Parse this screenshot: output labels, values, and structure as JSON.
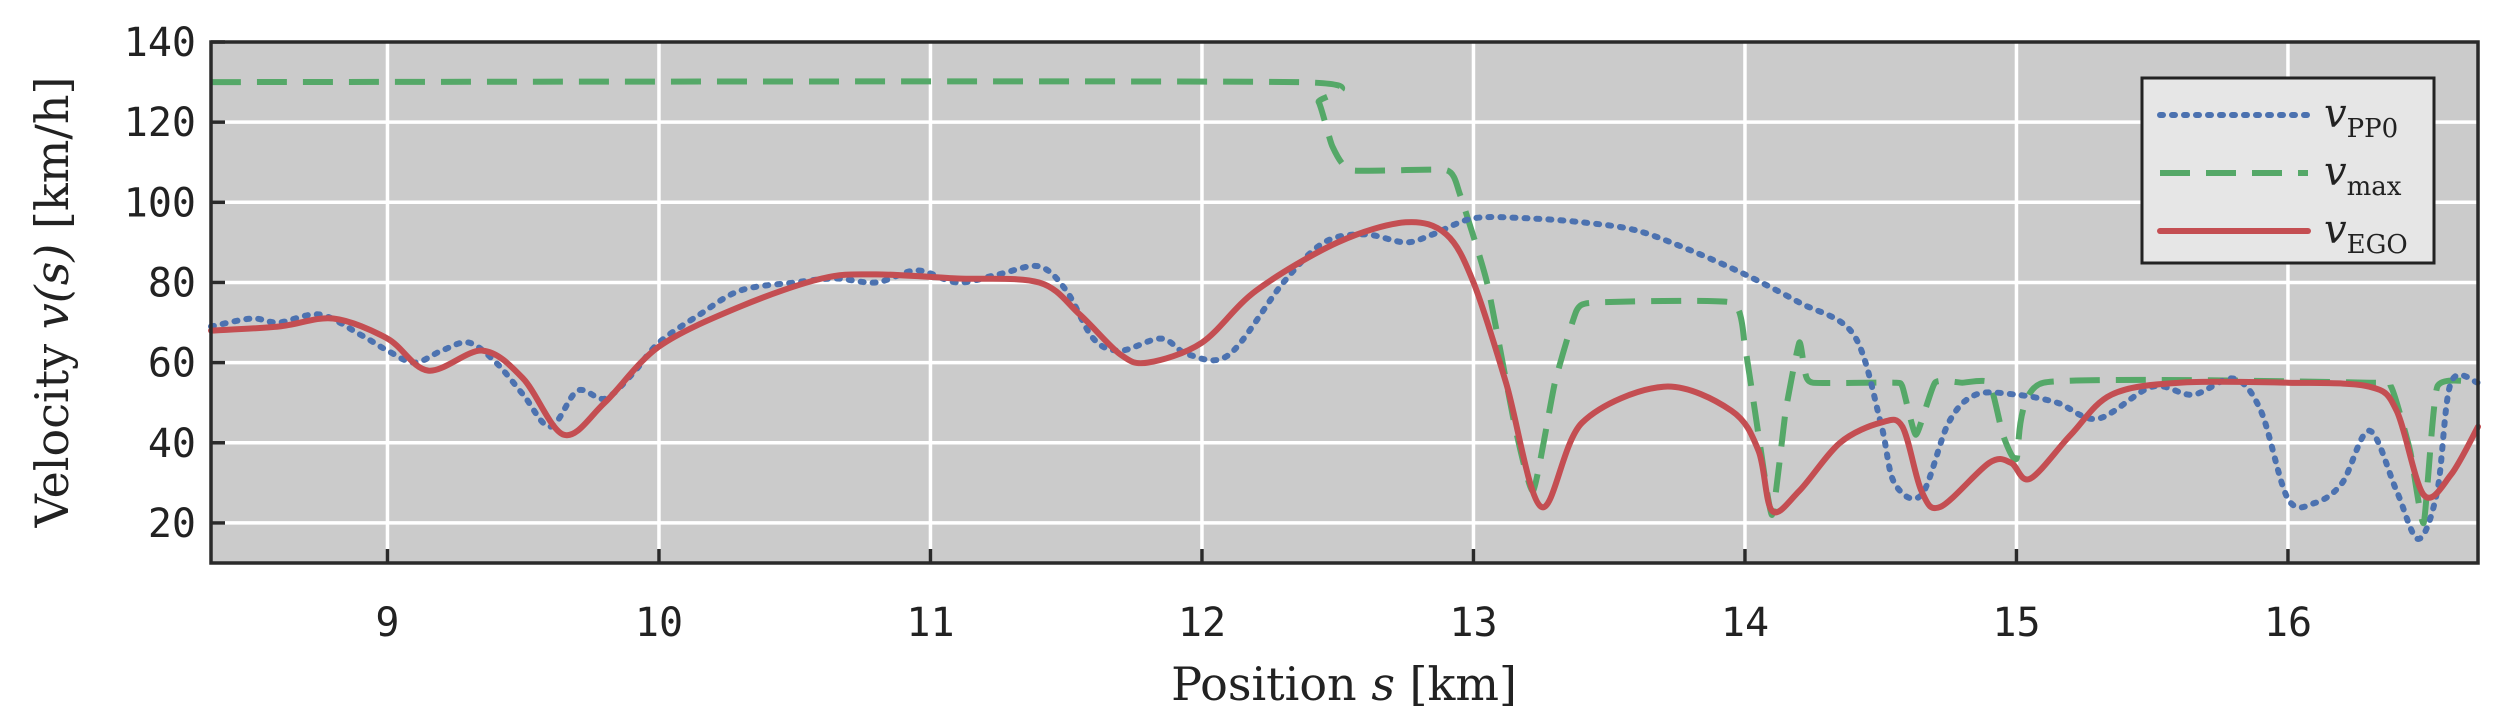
{
  "chart_data": {
    "type": "line",
    "xlabel": {
      "prefix": "Position ",
      "var": "s",
      "suffix": " [km]"
    },
    "ylabel": {
      "prefix": "Velocity ",
      "var": "v(s)",
      "suffix": " [km/h]"
    },
    "xlim": [
      8.35,
      16.7
    ],
    "ylim": [
      10,
      140
    ],
    "xticks": [
      9,
      10,
      11,
      12,
      13,
      14,
      15,
      16
    ],
    "yticks": [
      20,
      40,
      60,
      80,
      100,
      120,
      140
    ],
    "grid": true,
    "legend_position": "top-right",
    "series": [
      {
        "key": "pp0",
        "name": {
          "var": "v",
          "sub": "PP0"
        },
        "color": "#4c72b0",
        "style": "dotted",
        "x": [
          8.35,
          8.5,
          8.6,
          8.75,
          8.9,
          9.0,
          9.1,
          9.2,
          9.3,
          9.4,
          9.5,
          9.6,
          9.7,
          9.8,
          9.9,
          10.0,
          10.15,
          10.3,
          10.5,
          10.65,
          10.8,
          10.95,
          11.1,
          11.25,
          11.4,
          11.5,
          11.6,
          11.7,
          11.85,
          11.95,
          12.1,
          12.3,
          12.45,
          12.6,
          12.75,
          12.85,
          13.0,
          13.2,
          13.4,
          13.6,
          13.8,
          14.0,
          14.2,
          14.4,
          14.5,
          14.55,
          14.65,
          14.75,
          14.85,
          15.0,
          15.15,
          15.3,
          15.5,
          15.65,
          15.8,
          15.9,
          16.0,
          16.1,
          16.2,
          16.3,
          16.4,
          16.48,
          16.55,
          16.6,
          16.7
        ],
        "y": [
          69,
          71,
          70,
          72,
          67,
          63,
          60,
          63,
          65,
          60,
          52,
          44,
          53,
          51,
          57,
          65,
          72,
          78,
          80,
          81,
          80,
          83,
          80,
          82,
          84,
          78,
          66,
          63,
          66,
          62,
          62,
          80,
          90,
          92,
          90,
          92,
          96,
          96,
          95,
          93,
          88,
          82,
          75,
          67,
          45,
          30,
          27,
          45,
          52,
          52,
          50,
          46,
          54,
          52,
          56,
          48,
          26,
          25,
          30,
          43,
          28,
          16,
          28,
          55,
          55
        ]
      },
      {
        "key": "vmax",
        "name": {
          "var": "v",
          "sub": "max"
        },
        "color": "#55a868",
        "style": "dashed",
        "x": [
          8.35,
          12.35,
          12.43,
          12.48,
          12.55,
          12.9,
          12.95,
          13.05,
          13.15,
          13.22,
          13.3,
          13.38,
          13.45,
          13.95,
          14.0,
          14.05,
          14.1,
          14.15,
          14.2,
          14.22,
          14.25,
          14.55,
          14.58,
          14.63,
          14.7,
          14.8,
          14.9,
          14.95,
          15.0,
          15.1,
          16.3,
          16.38,
          16.45,
          16.5,
          16.55,
          16.7
        ],
        "y": [
          130,
          130,
          125,
          114,
          108,
          108,
          102,
          80,
          45,
          28,
          55,
          73,
          75,
          75,
          64,
          42,
          22,
          48,
          65,
          58,
          55,
          55,
          54,
          42,
          55,
          55,
          55,
          42,
          36,
          55,
          55,
          54,
          38,
          20,
          54,
          55
        ]
      },
      {
        "key": "ego",
        "name": {
          "var": "v",
          "sub": "EGO"
        },
        "color": "#c44e52",
        "style": "solid",
        "x": [
          8.35,
          8.6,
          8.8,
          9.0,
          9.15,
          9.35,
          9.5,
          9.65,
          9.8,
          10.0,
          10.3,
          10.6,
          10.8,
          11.1,
          11.4,
          11.55,
          11.7,
          11.8,
          12.0,
          12.2,
          12.5,
          12.75,
          12.9,
          13.0,
          13.12,
          13.25,
          13.4,
          13.7,
          13.95,
          14.05,
          14.1,
          14.2,
          14.35,
          14.5,
          14.58,
          14.65,
          14.72,
          14.9,
          14.98,
          15.05,
          15.2,
          15.35,
          15.6,
          16.0,
          16.3,
          16.4,
          16.5,
          16.6,
          16.7
        ],
        "y": [
          68,
          69,
          71,
          66,
          58,
          63,
          56,
          42,
          50,
          64,
          74,
          81,
          82,
          81,
          80,
          72,
          62,
          60,
          65,
          78,
          90,
          95,
          92,
          80,
          55,
          24,
          45,
          54,
          48,
          38,
          23,
          28,
          40,
          45,
          44,
          28,
          24,
          35,
          35,
          31,
          42,
          52,
          55,
          55,
          54,
          48,
          27,
          32,
          44
        ]
      }
    ]
  }
}
